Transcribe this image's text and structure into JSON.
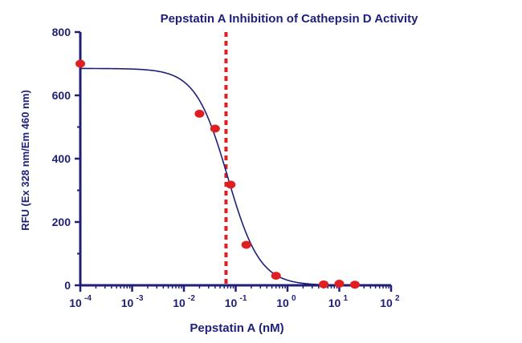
{
  "chart_data": {
    "type": "scatter",
    "title": "Pepstatin A Inhibition of Cathepsin D Activity",
    "xlabel": "Pepstatin A (nM)",
    "ylabel": "RFU (Ex 328 nm/Em 460 nm)",
    "x_scale": "log",
    "xlim": [
      0.0001,
      100
    ],
    "ylim": [
      0,
      800
    ],
    "x_ticks": [
      {
        "base": "10",
        "exp": "-4",
        "value": 0.0001
      },
      {
        "base": "10",
        "exp": "-3",
        "value": 0.001
      },
      {
        "base": "10",
        "exp": "-2",
        "value": 0.01
      },
      {
        "base": "10",
        "exp": "-1",
        "value": 0.1
      },
      {
        "base": "10",
        "exp": "0",
        "value": 1
      },
      {
        "base": "10",
        "exp": "1",
        "value": 10
      },
      {
        "base": "10",
        "exp": "2",
        "value": 100
      }
    ],
    "y_ticks": [
      "0",
      "200",
      "400",
      "600",
      "800"
    ],
    "points": [
      {
        "x": 0.0001,
        "y": 700
      },
      {
        "x": 0.02,
        "y": 542
      },
      {
        "x": 0.04,
        "y": 495
      },
      {
        "x": 0.08,
        "y": 318
      },
      {
        "x": 0.16,
        "y": 128
      },
      {
        "x": 0.6,
        "y": 30
      },
      {
        "x": 5,
        "y": 3
      },
      {
        "x": 10,
        "y": 5
      },
      {
        "x": 20,
        "y": 2
      }
    ],
    "fit_curve": {
      "top": 685,
      "bottom": 0,
      "ic50": 0.07,
      "hill": 1.4
    },
    "reference_line": {
      "x": 0.065,
      "style": "dashed"
    },
    "grid": false,
    "colors": {
      "axis": "#1f1f7a",
      "points": "#e02020",
      "curve": "#1f1f7a",
      "reference": "#e02020"
    }
  }
}
